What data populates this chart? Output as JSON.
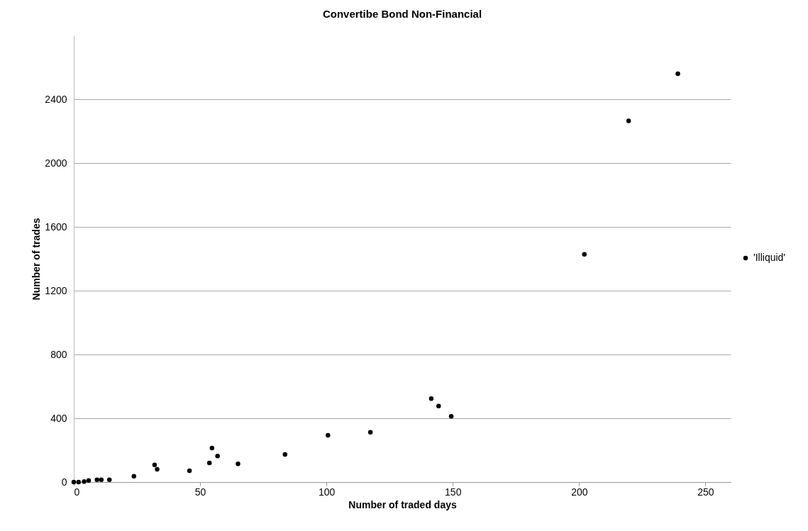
{
  "chart_data": {
    "type": "scatter",
    "title": "Convertibe Bond Non-Financial",
    "xlabel": "Number of traded days",
    "ylabel": "Number of trades",
    "series": [
      {
        "name": "'Illiquid'",
        "color": "#000000",
        "x": [
          0,
          1.9,
          4.1,
          5.9,
          9.2,
          10.9,
          14.1,
          23.8,
          32.0,
          33.0,
          45.8,
          53.7,
          54.7,
          56.9,
          65.0,
          83.6,
          100.6,
          117.4,
          141.5,
          144.4,
          149.4,
          202.1,
          219.6,
          239.1
        ],
        "values": [
          0,
          0,
          3,
          10,
          15,
          15,
          15,
          37,
          108,
          80,
          71,
          120,
          213,
          163,
          114,
          173,
          293,
          312,
          523,
          477,
          412,
          1428,
          2264,
          2560
        ]
      }
    ],
    "xlim": [
      0,
      260
    ],
    "xticks": [
      0,
      50,
      100,
      150,
      200,
      250
    ],
    "ylim": [
      0,
      2800
    ],
    "yticks": [
      0,
      400,
      800,
      1200,
      1600,
      2000,
      2400
    ],
    "grid": "y",
    "legend": "right",
    "marker": "circle"
  }
}
